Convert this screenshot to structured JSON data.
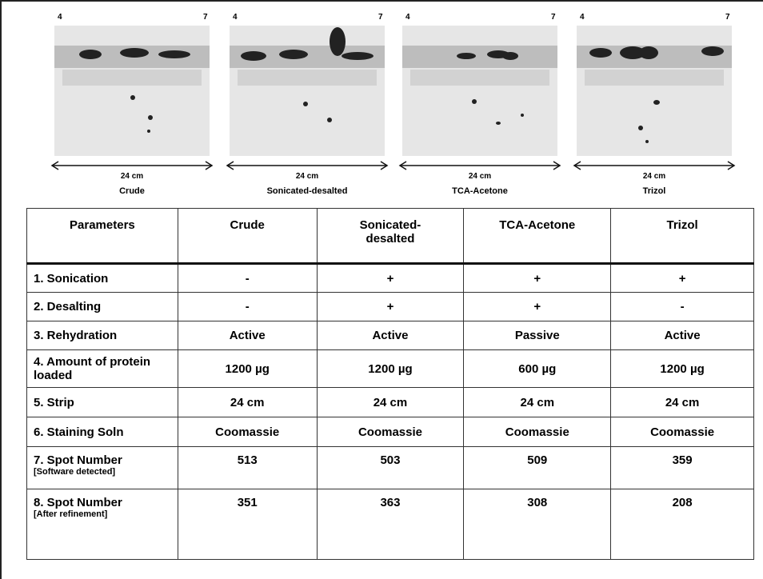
{
  "gels": [
    {
      "label": "Crude",
      "left_tick": "4",
      "right_tick": "7",
      "length": "24 cm"
    },
    {
      "label": "Sonicated-desalted",
      "left_tick": "4",
      "right_tick": "7",
      "length": "24 cm"
    },
    {
      "label": "TCA-Acetone",
      "left_tick": "4",
      "right_tick": "7",
      "length": "24 cm"
    },
    {
      "label": "Trizol",
      "left_tick": "4",
      "right_tick": "7",
      "length": "24 cm"
    }
  ],
  "table": {
    "header": [
      "Parameters",
      "Crude",
      "Sonicated-desalted",
      "TCA-Acetone",
      "Trizol"
    ],
    "rows": [
      {
        "label": "1. Sonication",
        "cells": [
          "-",
          "+",
          "+",
          "+"
        ]
      },
      {
        "label": "2. Desalting",
        "cells": [
          "-",
          "+",
          "+",
          "-"
        ]
      },
      {
        "label": "3. Rehydration",
        "cells": [
          "Active",
          "Active",
          "Passive",
          "Active"
        ]
      },
      {
        "label": "4. Amount of protein loaded",
        "cells": [
          "1200 µg",
          "1200 µg",
          "600 µg",
          "1200 µg"
        ]
      },
      {
        "label": "5. Strip",
        "cells": [
          "24 cm",
          "24 cm",
          "24 cm",
          "24 cm"
        ]
      },
      {
        "label": "6. Staining Soln",
        "cells": [
          "Coomassie",
          "Coomassie",
          "Coomassie",
          "Coomassie"
        ]
      },
      {
        "label": "7. Spot Number",
        "note": "[Software detected]",
        "cells": [
          513,
          503,
          509,
          359
        ]
      },
      {
        "label": "8. Spot Number",
        "note": "[After refinement]",
        "cells": [
          351,
          363,
          308,
          208
        ]
      }
    ]
  }
}
